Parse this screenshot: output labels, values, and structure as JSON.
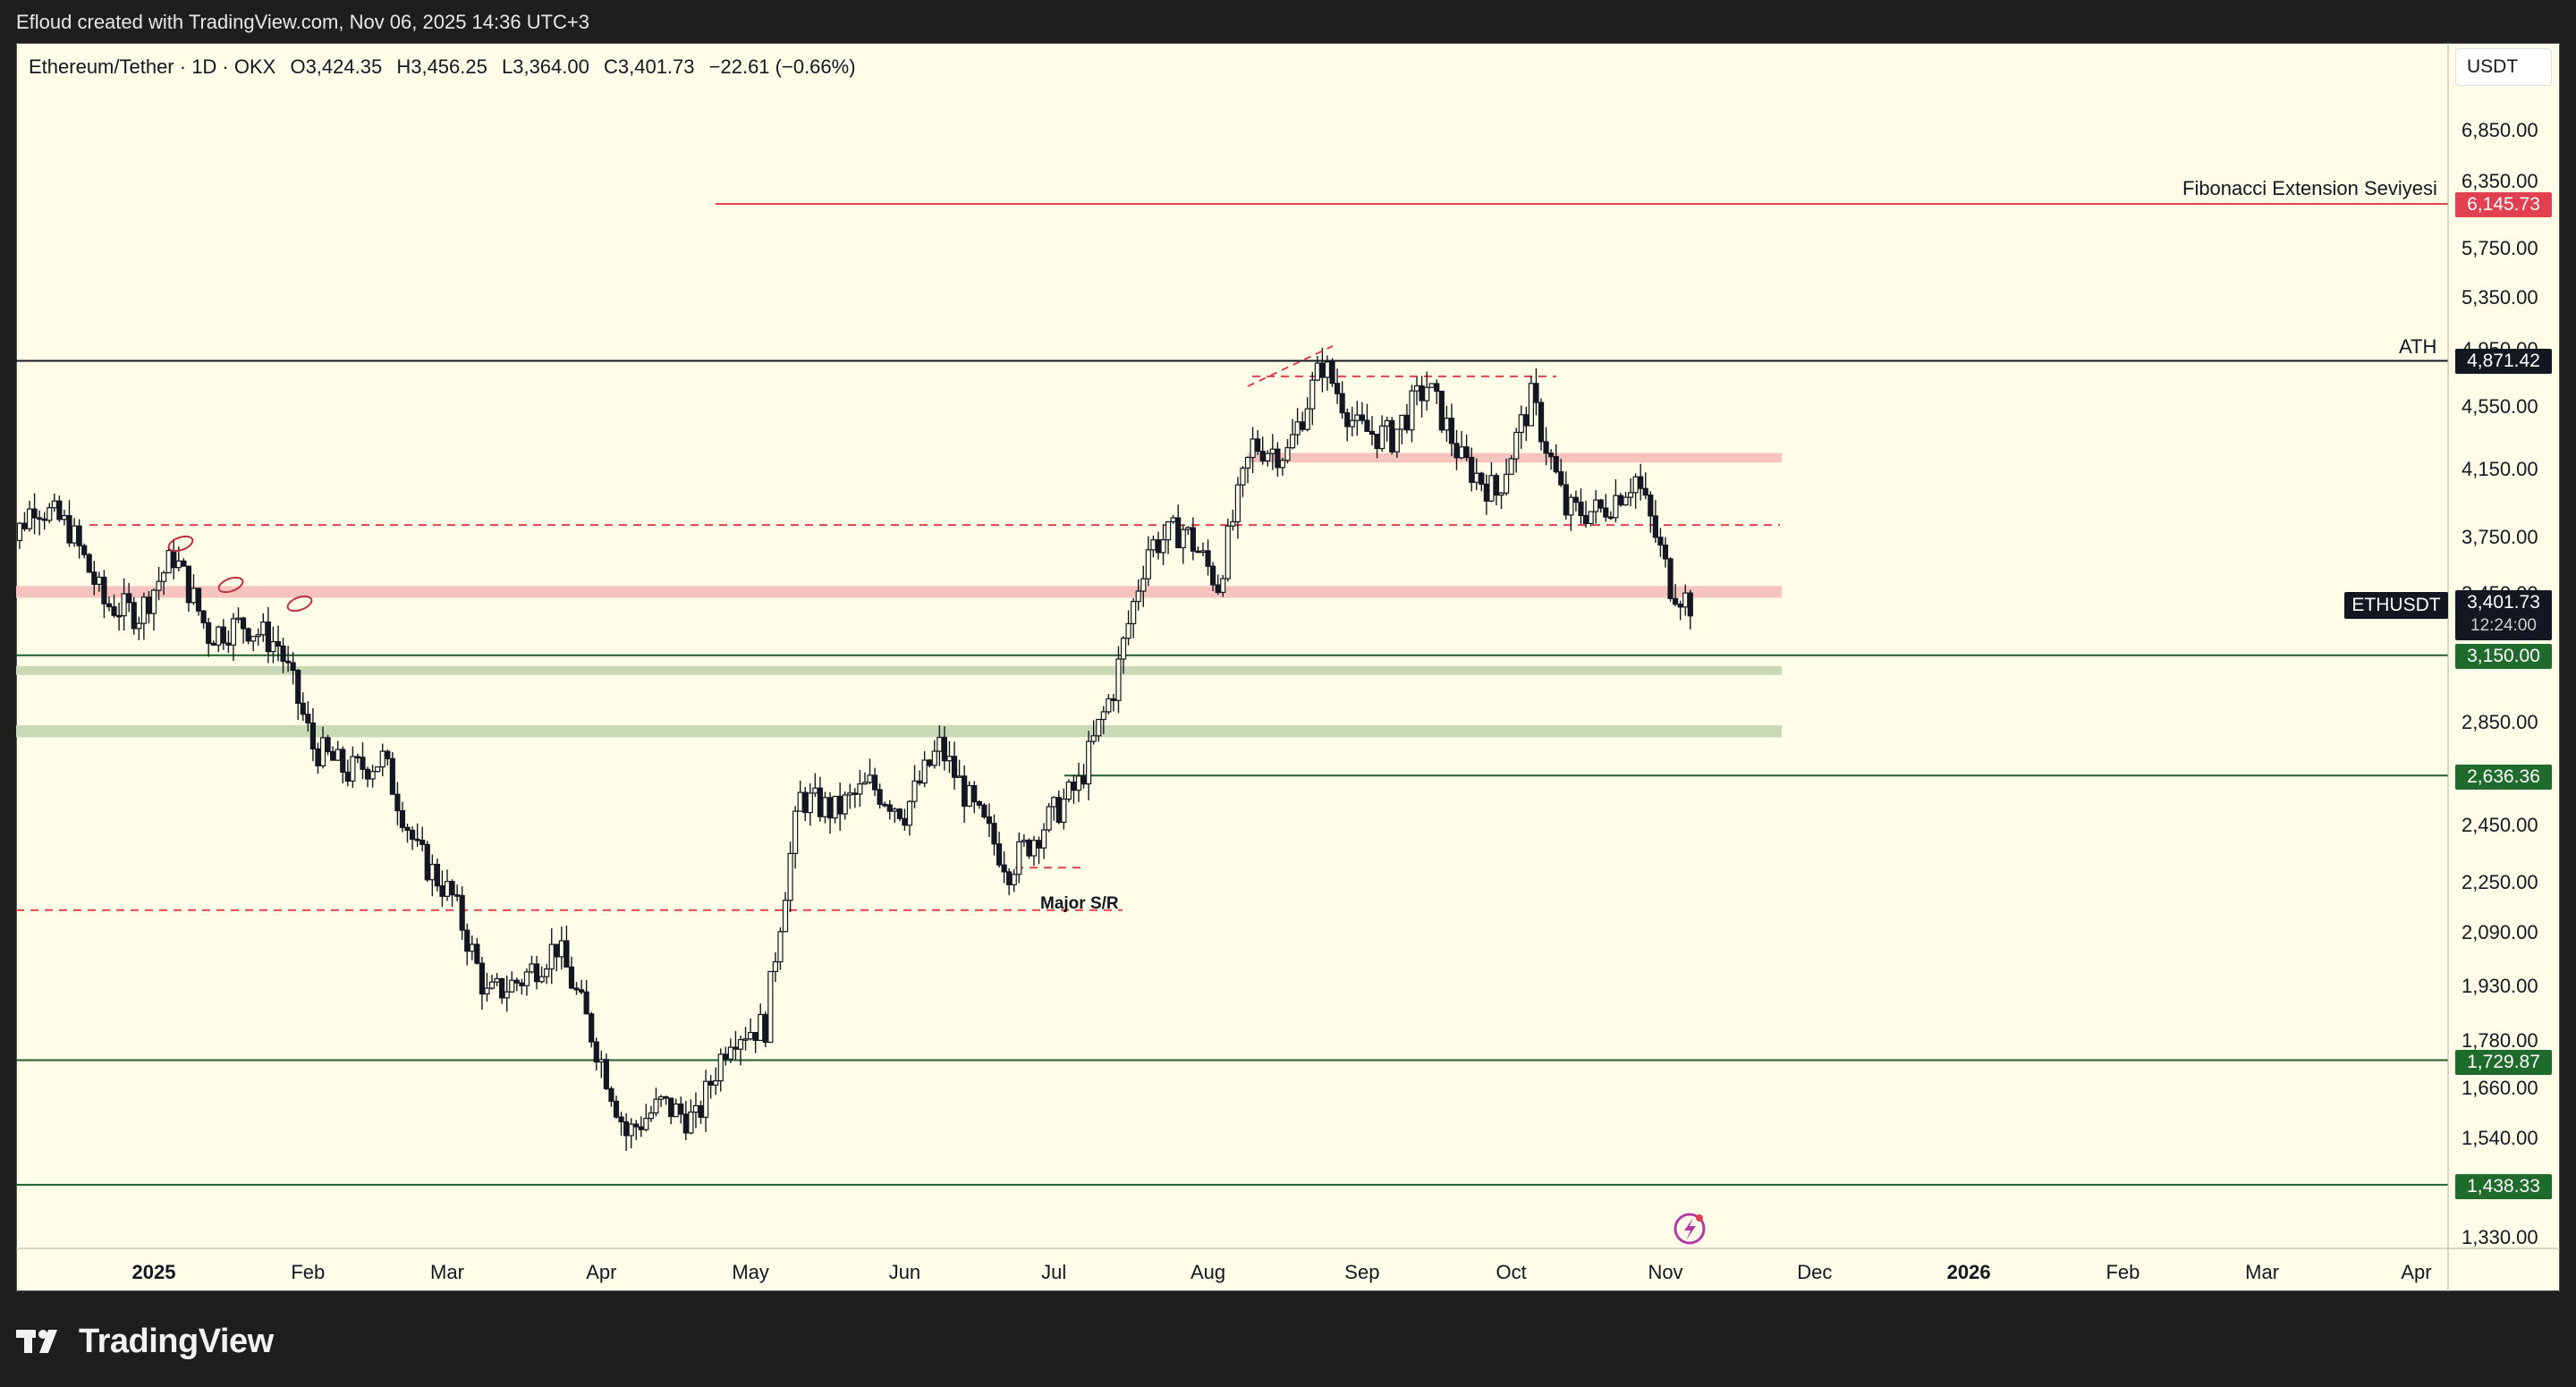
{
  "header": {
    "attribution": "Efloud created with TradingView.com, Nov 06, 2025 14:36 UTC+3"
  },
  "legend": {
    "symbol": "Ethereum/Tether · 1D · OKX",
    "open": "O3,424.35",
    "high": "H3,456.25",
    "low": "L3,364.00",
    "close": "C3,401.73",
    "change": "−22.61 (−0.66%)"
  },
  "currency_label": "USDT",
  "price_axis_labels": [
    "6,850.00",
    "6,350.00",
    "5,750.00",
    "5,350.00",
    "4,950.00",
    "4,550.00",
    "4,150.00",
    "3,750.00",
    "3,450.00",
    "2,850.00",
    "2,450.00",
    "2,250.00",
    "2,090.00",
    "1,930.00",
    "1,780.00",
    "1,660.00",
    "1,540.00",
    "1,330.00"
  ],
  "time_axis_labels": [
    "2025",
    "Feb",
    "Mar",
    "Apr",
    "May",
    "Jun",
    "Jul",
    "Aug",
    "Sep",
    "Oct",
    "Nov",
    "Dec",
    "2026",
    "Feb",
    "Mar",
    "Apr"
  ],
  "price_tags": {
    "fib": "6,145.73",
    "ath": "4,871.42",
    "symbol_tag": "ETHUSDT",
    "last": "3,401.73",
    "countdown": "12:24:00",
    "s1": "3,150.00",
    "s2": "2,636.36",
    "s3": "1,729.87",
    "s4": "1,438.33"
  },
  "annotations": {
    "fib_label": "Fibonacci Extension Seviyesi",
    "ath_label": "ATH",
    "sr_label": "Major S/R"
  },
  "footer": {
    "brand": "TradingView"
  },
  "colors": {
    "background": "#fefee8",
    "candle": "#131722",
    "fib_line": "#e04050",
    "support_line": "#1f5f2a",
    "resistance_zone": "#f6c3bd",
    "support_zone": "#c9d9b5",
    "dashed_red": "#e04050",
    "tag_green": "#1f6b2b",
    "tag_red": "#e04050",
    "tag_black": "#131722"
  },
  "chart_data": {
    "type": "candlestick",
    "title": "Ethereum/Tether · 1D · OKX",
    "xlabel": "",
    "ylabel": "",
    "y_scale": "log",
    "ylim": [
      1280,
      7300
    ],
    "x_categories": [
      "2025",
      "Feb",
      "Mar",
      "Apr",
      "May",
      "Jun",
      "Jul",
      "Aug",
      "Sep",
      "Oct",
      "Nov",
      "Dec",
      "2026",
      "Feb",
      "Mar",
      "Apr"
    ],
    "horizontal_levels": [
      {
        "price": 6145.73,
        "label": "Fibonacci Extension Seviyesi",
        "style": "solid",
        "color": "#e04050"
      },
      {
        "price": 4871.42,
        "label": "ATH",
        "style": "solid",
        "color": "#131722"
      },
      {
        "price": 3150.0,
        "style": "solid",
        "color": "#1f5f2a"
      },
      {
        "price": 2636.36,
        "style": "solid",
        "color": "#1f5f2a"
      },
      {
        "price": 1729.87,
        "style": "solid",
        "color": "#1f5f2a"
      },
      {
        "price": 1438.33,
        "style": "solid",
        "color": "#1f5f2a"
      }
    ],
    "zones": [
      {
        "price_low": 4190,
        "price_high": 4250,
        "color": "#f6c3bd"
      },
      {
        "price_low": 3430,
        "price_high": 3490,
        "color": "#f6c3bd"
      },
      {
        "price_low": 3060,
        "price_high": 3100,
        "color": "#c9d9b5"
      },
      {
        "price_low": 2790,
        "price_high": 2840,
        "color": "#c9d9b5"
      }
    ],
    "dashed_levels": [
      {
        "price": 3820
      },
      {
        "price": 4760
      },
      {
        "price": 2160,
        "label": "Major S/R"
      },
      {
        "price": 2300
      }
    ],
    "last_price": 3401.73,
    "ohlc": {
      "open": 3424.35,
      "high": 3456.25,
      "low": 3364.0,
      "close": 3401.73,
      "change": -22.61,
      "change_pct": -0.66
    },
    "price_path": [
      {
        "date": "2024-12-01",
        "close": 3600
      },
      {
        "date": "2024-12-08",
        "close": 3950
      },
      {
        "date": "2024-12-15",
        "close": 3800
      },
      {
        "date": "2024-12-22",
        "close": 3400
      },
      {
        "date": "2024-12-29",
        "close": 3350
      },
      {
        "date": "2025-01-05",
        "close": 3650
      },
      {
        "date": "2025-01-12",
        "close": 3250
      },
      {
        "date": "2025-01-19",
        "close": 3300
      },
      {
        "date": "2025-01-26",
        "close": 3200
      },
      {
        "date": "2025-02-02",
        "close": 2750
      },
      {
        "date": "2025-02-09",
        "close": 2650
      },
      {
        "date": "2025-02-16",
        "close": 2700
      },
      {
        "date": "2025-02-23",
        "close": 2350
      },
      {
        "date": "2025-03-02",
        "close": 2200
      },
      {
        "date": "2025-03-09",
        "close": 1900
      },
      {
        "date": "2025-03-16",
        "close": 1950
      },
      {
        "date": "2025-03-23",
        "close": 2050
      },
      {
        "date": "2025-03-30",
        "close": 1800
      },
      {
        "date": "2025-04-06",
        "close": 1550
      },
      {
        "date": "2025-04-13",
        "close": 1620
      },
      {
        "date": "2025-04-20",
        "close": 1580
      },
      {
        "date": "2025-04-27",
        "close": 1800
      },
      {
        "date": "2025-05-04",
        "close": 1820
      },
      {
        "date": "2025-05-11",
        "close": 2550
      },
      {
        "date": "2025-05-18",
        "close": 2500
      },
      {
        "date": "2025-05-25",
        "close": 2600
      },
      {
        "date": "2025-06-01",
        "close": 2500
      },
      {
        "date": "2025-06-08",
        "close": 2750
      },
      {
        "date": "2025-06-15",
        "close": 2500
      },
      {
        "date": "2025-06-22",
        "close": 2300
      },
      {
        "date": "2025-06-29",
        "close": 2450
      },
      {
        "date": "2025-07-06",
        "close": 2600
      },
      {
        "date": "2025-07-13",
        "close": 3000
      },
      {
        "date": "2025-07-20",
        "close": 3700
      },
      {
        "date": "2025-07-27",
        "close": 3800
      },
      {
        "date": "2025-08-03",
        "close": 3500
      },
      {
        "date": "2025-08-10",
        "close": 4300
      },
      {
        "date": "2025-08-17",
        "close": 4250
      },
      {
        "date": "2025-08-24",
        "close": 4850
      },
      {
        "date": "2025-08-31",
        "close": 4400
      },
      {
        "date": "2025-09-07",
        "close": 4350
      },
      {
        "date": "2025-09-14",
        "close": 4700
      },
      {
        "date": "2025-09-21",
        "close": 4200
      },
      {
        "date": "2025-09-28",
        "close": 4000
      },
      {
        "date": "2025-10-05",
        "close": 4600
      },
      {
        "date": "2025-10-12",
        "close": 3900
      },
      {
        "date": "2025-10-19",
        "close": 3900
      },
      {
        "date": "2025-10-26",
        "close": 4100
      },
      {
        "date": "2025-11-02",
        "close": 3500
      },
      {
        "date": "2025-11-06",
        "close": 3401.73
      }
    ]
  }
}
